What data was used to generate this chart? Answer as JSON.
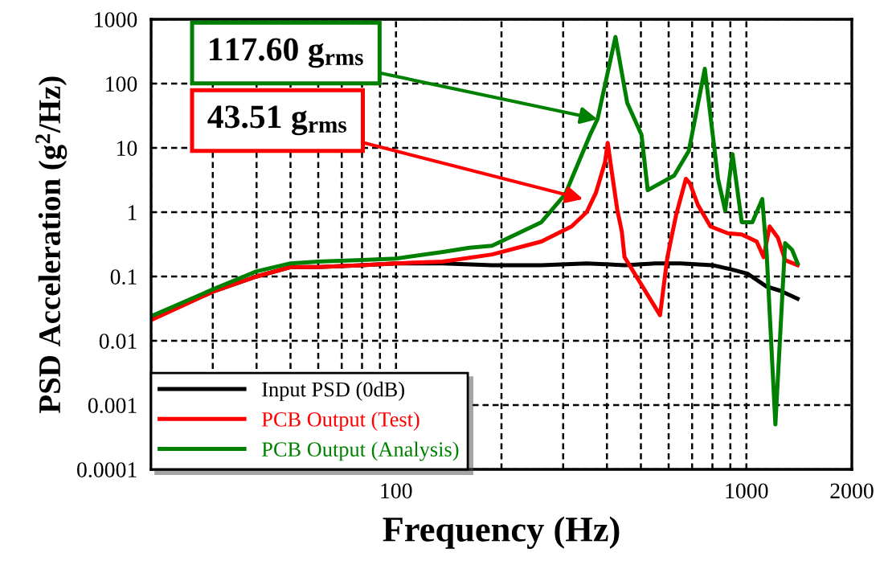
{
  "chart_data": {
    "type": "line",
    "xlabel": "Frequency (Hz)",
    "ylabel": "PSD Acceleration (g$^{2}$/Hz)",
    "log": "xy",
    "grid": true,
    "legend": "bottom left",
    "marker": "none",
    "line_style": "solid",
    "xlim": [
      20,
      2000
    ],
    "xticks": [
      100,
      1000,
      2000
    ],
    "ylim": [
      0.0001,
      1000
    ],
    "yticks": [
      0.0001,
      0.001,
      0.01,
      0.1,
      1,
      10,
      100,
      1000
    ],
    "series": [
      {
        "name": "Input PSD (0dB)",
        "color": "#000000",
        "x": [
          20,
          30,
          40,
          50,
          60,
          80,
          100,
          136,
          188,
          260,
          350,
          450,
          550,
          650,
          800,
          900,
          1010,
          1140,
          1250,
          1400
        ],
        "values": [
          0.022,
          0.058,
          0.1,
          0.14,
          0.14,
          0.15,
          0.16,
          0.16,
          0.15,
          0.15,
          0.16,
          0.15,
          0.16,
          0.16,
          0.15,
          0.13,
          0.11,
          0.07,
          0.06,
          0.045
        ]
      },
      {
        "name": "PCB Output (Test)",
        "color": "#ff0000",
        "x": [
          20,
          30,
          40,
          50,
          60,
          80,
          100,
          136,
          188,
          260,
          317,
          350,
          372,
          395,
          402,
          413,
          428,
          441,
          449,
          567,
          595,
          630,
          672,
          690,
          727,
          790,
          885,
          970,
          1070,
          1120,
          1165,
          1230,
          1290,
          1400
        ],
        "values": [
          0.021,
          0.058,
          0.1,
          0.14,
          0.14,
          0.15,
          0.16,
          0.17,
          0.22,
          0.35,
          0.6,
          1.0,
          2,
          6,
          12,
          4.2,
          1.1,
          0.5,
          0.2,
          0.025,
          0.2,
          0.9,
          3.3,
          2.8,
          1.3,
          0.6,
          0.47,
          0.45,
          0.35,
          0.2,
          0.6,
          0.4,
          0.18,
          0.15
        ]
      },
      {
        "name": "PCB Output (Analysis)",
        "color": "#008000",
        "x": [
          20,
          30,
          40,
          50,
          60,
          80,
          100,
          136,
          162,
          188,
          260,
          304,
          358,
          376,
          423,
          457,
          502,
          523,
          622,
          685,
          761,
          830,
          870,
          913,
          970,
          1040,
          1110,
          1143,
          1210,
          1290,
          1350,
          1400
        ],
        "values": [
          0.024,
          0.063,
          0.12,
          0.16,
          0.17,
          0.18,
          0.19,
          0.24,
          0.28,
          0.3,
          0.7,
          1.9,
          16,
          28,
          530,
          50,
          16,
          2.2,
          3.7,
          9,
          170,
          3.3,
          1.06,
          8,
          0.7,
          0.7,
          1.6,
          0.22,
          0.0005,
          0.33,
          0.26,
          0.16
        ]
      }
    ],
    "annotations": [
      {
        "text": "117.60 g$_{rms}$",
        "x": 376,
        "y": 28
      },
      {
        "text": "43.51 g$_{rms}$",
        "x": 342,
        "y": 1.6
      }
    ]
  }
}
